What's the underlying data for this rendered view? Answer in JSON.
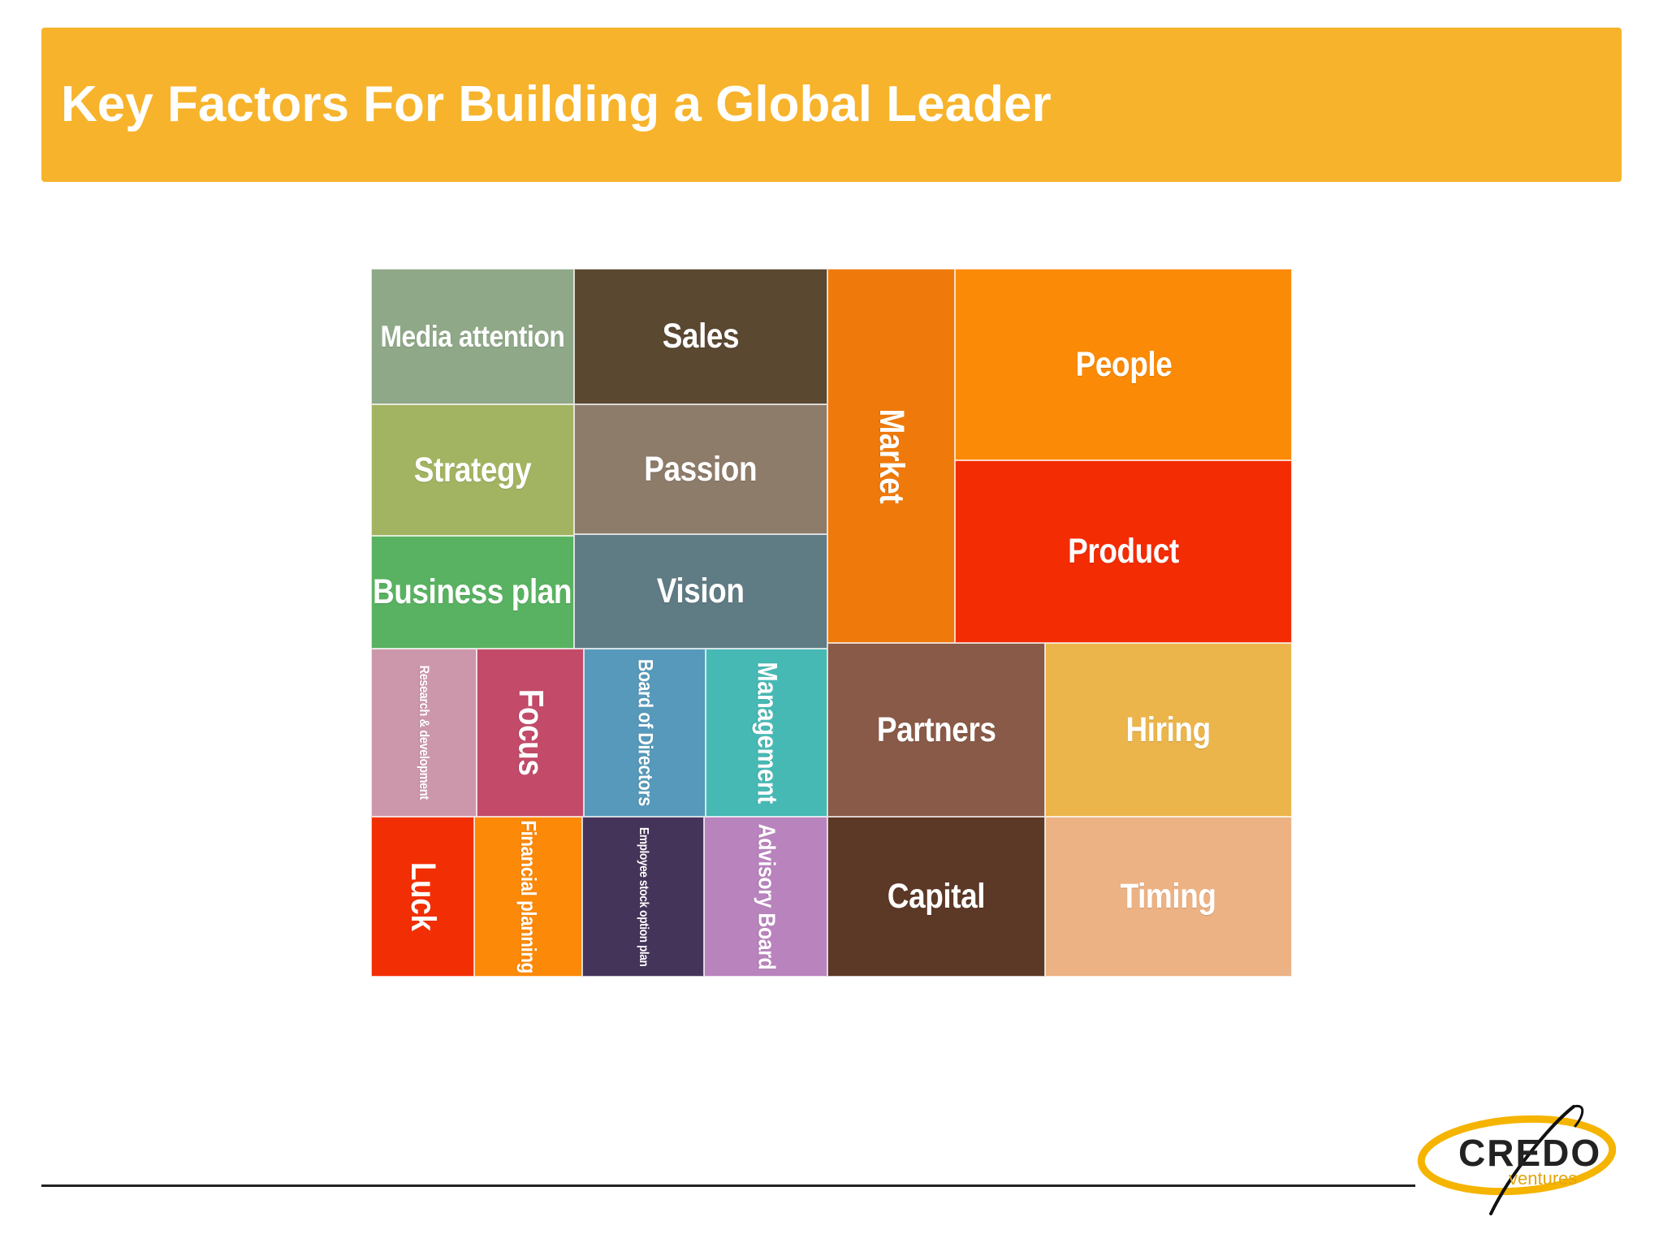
{
  "title": "Key Factors For Building a Global Leader",
  "treemap": {
    "tiles": [
      {
        "label": "Media attention",
        "color": "#8fa888"
      },
      {
        "label": "Sales",
        "color": "#5a4831"
      },
      {
        "label": "Strategy",
        "color": "#a2b461"
      },
      {
        "label": "Passion",
        "color": "#8e7c6b"
      },
      {
        "label": "Business plan",
        "color": "#59b261"
      },
      {
        "label": "Vision",
        "color": "#5f7b84"
      },
      {
        "label": "Market",
        "color": "#ef7a0b"
      },
      {
        "label": "People",
        "color": "#fb8a06"
      },
      {
        "label": "Product",
        "color": "#f42c04"
      },
      {
        "label": "Research & development",
        "color": "#cd97ab"
      },
      {
        "label": "Focus",
        "color": "#c34b69"
      },
      {
        "label": "Board of Directors",
        "color": "#5699ba"
      },
      {
        "label": "Management",
        "color": "#47b9b5"
      },
      {
        "label": "Luck",
        "color": "#f22f04"
      },
      {
        "label": "Financial planning",
        "color": "#fd8908"
      },
      {
        "label": "Employee stock option plan",
        "color": "#45345a"
      },
      {
        "label": "Advisory Board",
        "color": "#b983bd"
      },
      {
        "label": "Partners",
        "color": "#895a47"
      },
      {
        "label": "Hiring",
        "color": "#ebb54c"
      },
      {
        "label": "Capital",
        "color": "#5c3826"
      },
      {
        "label": "Timing",
        "color": "#ecb284"
      }
    ]
  },
  "logo": {
    "name": "CREDO",
    "sub": "ventures"
  }
}
